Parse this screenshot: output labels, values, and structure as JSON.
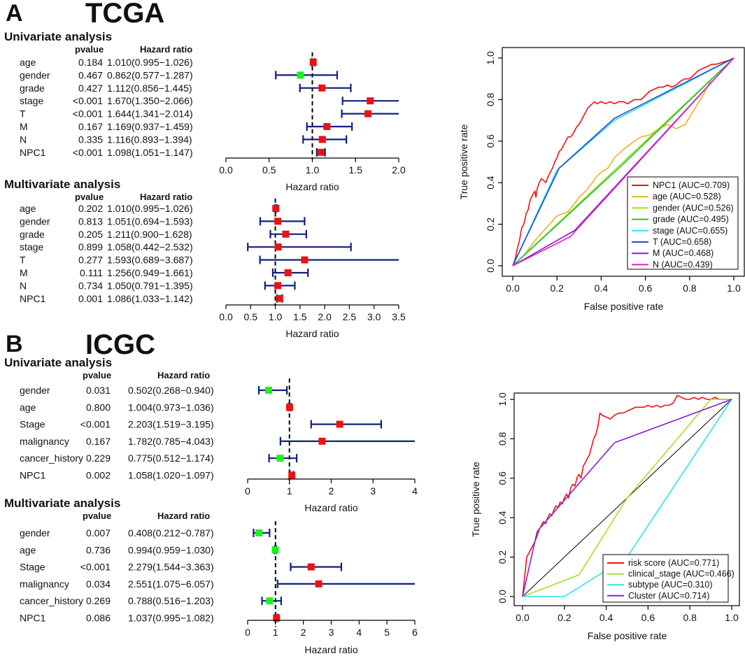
{
  "panels": [
    {
      "letter": "A",
      "cohort": "TCGA"
    },
    {
      "letter": "B",
      "cohort": "ICGC"
    }
  ],
  "forest_columns": {
    "pvalue": "pvalue",
    "hr": "Hazard ratio"
  },
  "colors": {
    "risk": "#ee1111",
    "protective": "#22ee22",
    "ci": "#10207a",
    "dash": "#000000"
  },
  "chart_data": [
    {
      "type": "forest",
      "id": "tcga_uni",
      "title": "Univariate analysis",
      "xlabel": "Hazard ratio",
      "xlim": [
        0,
        2.0
      ],
      "ticks": [
        0.0,
        0.5,
        1.0,
        1.5,
        2.0
      ],
      "tick_labels": [
        "0.0",
        "0.5",
        "1.0",
        "1.5",
        "2.0"
      ],
      "rows": [
        {
          "name": "age",
          "p": "0.184",
          "hr_text": "1.010(0.995−1.026)",
          "hr": 1.01,
          "lo": 0.995,
          "hi": 1.026
        },
        {
          "name": "gender",
          "p": "0.467",
          "hr_text": "0.862(0.577−1.287)",
          "hr": 0.862,
          "lo": 0.577,
          "hi": 1.287
        },
        {
          "name": "grade",
          "p": "0.427",
          "hr_text": "1.112(0.856−1.445)",
          "hr": 1.112,
          "lo": 0.856,
          "hi": 1.445
        },
        {
          "name": "stage",
          "p": "<0.001",
          "hr_text": "1.670(1.350−2.066)",
          "hr": 1.67,
          "lo": 1.35,
          "hi": 2.066
        },
        {
          "name": "T",
          "p": "<0.001",
          "hr_text": "1.644(1.341−2.014)",
          "hr": 1.644,
          "lo": 1.341,
          "hi": 2.014
        },
        {
          "name": "M",
          "p": "0.167",
          "hr_text": "1.169(0.937−1.459)",
          "hr": 1.169,
          "lo": 0.937,
          "hi": 1.459
        },
        {
          "name": "N",
          "p": "0.335",
          "hr_text": "1.116(0.893−1.394)",
          "hr": 1.116,
          "lo": 0.893,
          "hi": 1.394
        },
        {
          "name": "NPC1",
          "p": "<0.001",
          "hr_text": "1.098(1.051−1.147)",
          "hr": 1.098,
          "lo": 1.051,
          "hi": 1.147
        }
      ]
    },
    {
      "type": "forest",
      "id": "tcga_multi",
      "title": "Multivariate analysis",
      "xlabel": "Hazard ratio",
      "xlim": [
        0,
        3.5
      ],
      "ticks": [
        0.0,
        0.5,
        1.0,
        1.5,
        2.0,
        2.5,
        3.0,
        3.5
      ],
      "tick_labels": [
        "0.0",
        "0.5",
        "1.0",
        "1.5",
        "2.0",
        "2.5",
        "3.0",
        "3.5"
      ],
      "rows": [
        {
          "name": "age",
          "p": "0.202",
          "hr_text": "1.010(0.995−1.026)",
          "hr": 1.01,
          "lo": 0.995,
          "hi": 1.026
        },
        {
          "name": "gender",
          "p": "0.813",
          "hr_text": "1.051(0.694−1.593)",
          "hr": 1.051,
          "lo": 0.694,
          "hi": 1.593
        },
        {
          "name": "grade",
          "p": "0.205",
          "hr_text": "1.211(0.900−1.628)",
          "hr": 1.211,
          "lo": 0.9,
          "hi": 1.628
        },
        {
          "name": "stage",
          "p": "0.899",
          "hr_text": "1.058(0.442−2.532)",
          "hr": 1.058,
          "lo": 0.442,
          "hi": 2.532
        },
        {
          "name": "T",
          "p": "0.277",
          "hr_text": "1.593(0.689−3.687)",
          "hr": 1.593,
          "lo": 0.689,
          "hi": 3.687
        },
        {
          "name": "M",
          "p": "0.111",
          "hr_text": "1.256(0.949−1.661)",
          "hr": 1.256,
          "lo": 0.949,
          "hi": 1.661
        },
        {
          "name": "N",
          "p": "0.734",
          "hr_text": "1.050(0.791−1.395)",
          "hr": 1.05,
          "lo": 0.791,
          "hi": 1.395
        },
        {
          "name": "NPC1",
          "p": "0.001",
          "hr_text": "1.086(1.033−1.142)",
          "hr": 1.086,
          "lo": 1.033,
          "hi": 1.142
        }
      ]
    },
    {
      "type": "forest",
      "id": "icgc_uni",
      "title": "Univariate analysis",
      "xlabel": "Hazard ratio",
      "xlim": [
        0,
        4
      ],
      "ticks": [
        0,
        1,
        2,
        3,
        4
      ],
      "tick_labels": [
        "0",
        "1",
        "2",
        "3",
        "4"
      ],
      "rows": [
        {
          "name": "gender",
          "p": "0.031",
          "hr_text": "0.502(0.268−0.940)",
          "hr": 0.502,
          "lo": 0.268,
          "hi": 0.94
        },
        {
          "name": "age",
          "p": "0.800",
          "hr_text": "1.004(0.973−1.036)",
          "hr": 1.004,
          "lo": 0.973,
          "hi": 1.036
        },
        {
          "name": "Stage",
          "p": "<0.001",
          "hr_text": "2.203(1.519−3.195)",
          "hr": 2.203,
          "lo": 1.519,
          "hi": 3.195
        },
        {
          "name": "malignancy",
          "p": "0.167",
          "hr_text": "1.782(0.785−4.043)",
          "hr": 1.782,
          "lo": 0.785,
          "hi": 4.043
        },
        {
          "name": "cancer_history",
          "p": "0.229",
          "hr_text": "0.775(0.512−1.174)",
          "hr": 0.775,
          "lo": 0.512,
          "hi": 1.174
        },
        {
          "name": "NPC1",
          "p": "0.002",
          "hr_text": "1.058(1.020−1.097)",
          "hr": 1.058,
          "lo": 1.02,
          "hi": 1.097
        }
      ]
    },
    {
      "type": "forest",
      "id": "icgc_multi",
      "title": "Multivariate analysis",
      "xlabel": "Hazard ratio",
      "xlim": [
        0,
        6
      ],
      "ticks": [
        0,
        1,
        2,
        3,
        4,
        5,
        6
      ],
      "tick_labels": [
        "0",
        "1",
        "2",
        "3",
        "4",
        "5",
        "6"
      ],
      "rows": [
        {
          "name": "gender",
          "p": "0.007",
          "hr_text": "0.408(0.212−0.787)",
          "hr": 0.408,
          "lo": 0.212,
          "hi": 0.787
        },
        {
          "name": "age",
          "p": "0.736",
          "hr_text": "0.994(0.959−1.030)",
          "hr": 0.994,
          "lo": 0.959,
          "hi": 1.03
        },
        {
          "name": "Stage",
          "p": "<0.001",
          "hr_text": "2.279(1.544−3.363)",
          "hr": 2.279,
          "lo": 1.544,
          "hi": 3.363
        },
        {
          "name": "malignancy",
          "p": "0.034",
          "hr_text": "2.551(1.075−6.057)",
          "hr": 2.551,
          "lo": 1.075,
          "hi": 6.057
        },
        {
          "name": "cancer_history",
          "p": "0.269",
          "hr_text": "0.788(0.516−1.203)",
          "hr": 0.788,
          "lo": 0.516,
          "hi": 1.203
        },
        {
          "name": "NPC1",
          "p": "0.086",
          "hr_text": "1.037(0.995−1.082)",
          "hr": 1.037,
          "lo": 0.995,
          "hi": 1.082
        }
      ]
    },
    {
      "type": "line",
      "id": "tcga_roc",
      "xlabel": "False positive rate",
      "ylabel": "True positive rate",
      "xlim": [
        0,
        1
      ],
      "ylim": [
        0,
        1
      ],
      "ticks": [
        0.0,
        0.2,
        0.4,
        0.6,
        0.8,
        1.0
      ],
      "tick_labels": [
        "0.0",
        "0.2",
        "0.4",
        "0.6",
        "0.8",
        "1.0"
      ],
      "legend_position": "bottom-right",
      "series": [
        {
          "name": "NPC1 (AUC=0.709)",
          "color": "#ee1111",
          "x": [
            0,
            0.01,
            0.015,
            0.02,
            0.03,
            0.035,
            0.04,
            0.05,
            0.055,
            0.06,
            0.07,
            0.075,
            0.08,
            0.09,
            0.1,
            0.105,
            0.11,
            0.12,
            0.13,
            0.14,
            0.15,
            0.16,
            0.17,
            0.18,
            0.19,
            0.2,
            0.21,
            0.22,
            0.23,
            0.24,
            0.25,
            0.26,
            0.27,
            0.28,
            0.29,
            0.3,
            0.31,
            0.32,
            0.33,
            0.34,
            0.35,
            0.36,
            0.37,
            0.38,
            0.4,
            0.42,
            0.44,
            0.46,
            0.48,
            0.5,
            0.52,
            0.55,
            0.58,
            0.6,
            0.62,
            0.64,
            0.66,
            0.68,
            0.7,
            0.72,
            0.74,
            0.76,
            0.78,
            0.8,
            0.82,
            0.84,
            0.86,
            0.88,
            0.9,
            0.92,
            0.95,
            0.98,
            1.0
          ],
          "y": [
            0,
            0.03,
            0.05,
            0.08,
            0.12,
            0.15,
            0.18,
            0.2,
            0.22,
            0.25,
            0.27,
            0.3,
            0.32,
            0.34,
            0.36,
            0.33,
            0.37,
            0.4,
            0.42,
            0.41,
            0.4,
            0.43,
            0.45,
            0.47,
            0.5,
            0.52,
            0.55,
            0.56,
            0.58,
            0.6,
            0.62,
            0.62,
            0.63,
            0.65,
            0.67,
            0.68,
            0.7,
            0.72,
            0.74,
            0.76,
            0.77,
            0.78,
            0.79,
            0.78,
            0.79,
            0.78,
            0.79,
            0.78,
            0.79,
            0.79,
            0.78,
            0.8,
            0.8,
            0.82,
            0.84,
            0.85,
            0.86,
            0.86,
            0.87,
            0.86,
            0.87,
            0.89,
            0.9,
            0.9,
            0.92,
            0.94,
            0.95,
            0.96,
            0.97,
            0.97,
            0.98,
            0.99,
            1.0
          ]
        },
        {
          "name": "age (AUC=0.528)",
          "color": "#f0b020",
          "x": [
            0,
            0.05,
            0.1,
            0.15,
            0.2,
            0.25,
            0.28,
            0.3,
            0.33,
            0.36,
            0.38,
            0.4,
            0.43,
            0.46,
            0.5,
            0.55,
            0.58,
            0.62,
            0.66,
            0.7,
            0.74,
            0.78,
            0.82,
            0.86,
            0.9,
            0.95,
            1.0
          ],
          "y": [
            0,
            0.05,
            0.12,
            0.18,
            0.24,
            0.26,
            0.3,
            0.33,
            0.36,
            0.4,
            0.43,
            0.45,
            0.47,
            0.52,
            0.56,
            0.6,
            0.62,
            0.63,
            0.66,
            0.68,
            0.66,
            0.68,
            0.75,
            0.82,
            0.9,
            0.95,
            1.0
          ]
        },
        {
          "name": "gender (AUC=0.526)",
          "color": "#a0e020",
          "x": [
            0,
            1.0
          ],
          "y": [
            0,
            1.0
          ]
        },
        {
          "name": "grade (AUC=0.495)",
          "color": "#22c040",
          "x": [
            0,
            0.5,
            1.0
          ],
          "y": [
            0,
            0.49,
            1.0
          ]
        },
        {
          "name": "stage (AUC=0.655)",
          "color": "#30d8f0",
          "x": [
            0,
            0.2,
            0.46,
            1.0
          ],
          "y": [
            0,
            0.46,
            0.7,
            1.0
          ]
        },
        {
          "name": "T (AUC=0.658)",
          "color": "#1f4fd0",
          "x": [
            0,
            0.21,
            0.46,
            1.0
          ],
          "y": [
            0,
            0.47,
            0.71,
            1.0
          ]
        },
        {
          "name": "M (AUC=0.468)",
          "color": "#8a1fd0",
          "x": [
            0,
            0.28,
            1.0
          ],
          "y": [
            0,
            0.17,
            1.0
          ]
        },
        {
          "name": "N (AUC=0.439)",
          "color": "#e020c0",
          "x": [
            0,
            0.26,
            1.0
          ],
          "y": [
            0,
            0.14,
            1.0
          ]
        }
      ]
    },
    {
      "type": "line",
      "id": "icgc_roc",
      "xlabel": "False positive rate",
      "ylabel": "True positive rate",
      "xlim": [
        0,
        1
      ],
      "ylim": [
        0,
        1
      ],
      "ticks": [
        0.0,
        0.2,
        0.4,
        0.6,
        0.8,
        1.0
      ],
      "tick_labels": [
        "0.0",
        "0.2",
        "0.4",
        "0.6",
        "0.8",
        "1.0"
      ],
      "legend_position": "bottom-right",
      "series": [
        {
          "name": "risk score (AUC=0.771)",
          "color": "#ee1111",
          "x": [
            0,
            0.01,
            0.015,
            0.02,
            0.03,
            0.04,
            0.05,
            0.06,
            0.07,
            0.08,
            0.09,
            0.1,
            0.11,
            0.12,
            0.13,
            0.14,
            0.15,
            0.16,
            0.17,
            0.18,
            0.19,
            0.2,
            0.21,
            0.22,
            0.23,
            0.24,
            0.25,
            0.26,
            0.27,
            0.28,
            0.29,
            0.3,
            0.31,
            0.32,
            0.33,
            0.34,
            0.35,
            0.36,
            0.37,
            0.38,
            0.4,
            0.42,
            0.44,
            0.46,
            0.48,
            0.5,
            0.52,
            0.54,
            0.56,
            0.58,
            0.6,
            0.62,
            0.64,
            0.66,
            0.68,
            0.7,
            0.72,
            0.74,
            0.76,
            0.78,
            0.8,
            0.82,
            0.84,
            0.86,
            0.88,
            0.9,
            0.92,
            0.94,
            0.96,
            0.98,
            1.0
          ],
          "y": [
            0,
            0.1,
            0.15,
            0.2,
            0.22,
            0.24,
            0.26,
            0.28,
            0.31,
            0.34,
            0.36,
            0.38,
            0.37,
            0.4,
            0.42,
            0.41,
            0.44,
            0.46,
            0.45,
            0.48,
            0.47,
            0.5,
            0.52,
            0.5,
            0.55,
            0.57,
            0.56,
            0.6,
            0.62,
            0.6,
            0.66,
            0.68,
            0.7,
            0.72,
            0.76,
            0.8,
            0.82,
            0.86,
            0.93,
            0.92,
            0.91,
            0.9,
            0.92,
            0.93,
            0.93,
            0.94,
            0.95,
            0.96,
            0.96,
            0.96,
            0.97,
            0.96,
            0.97,
            0.96,
            0.97,
            0.97,
            0.98,
            1.02,
            1.01,
            1.0,
            1.0,
            1.01,
            1.0,
            1.01,
            1.0,
            1.0,
            1.01,
            1.0,
            1.0,
            1.0,
            1.0
          ]
        },
        {
          "name": "clinical_stage (AUC=0.466)",
          "color": "#a8e020",
          "x": [
            0,
            0.27,
            0.5,
            0.9,
            1.0
          ],
          "y": [
            0,
            0.11,
            0.5,
            1.0,
            1.0
          ]
        },
        {
          "name": "subtype (AUC=0.310)",
          "color": "#30e0f0",
          "x": [
            0,
            0.2,
            0.5,
            1.0
          ],
          "y": [
            0,
            0.0,
            0.2,
            1.0
          ]
        },
        {
          "name": "Cluster (AUC=0.714)",
          "color": "#8a1fd0",
          "x": [
            0,
            0.07,
            0.44,
            1.0
          ],
          "y": [
            0,
            0.33,
            0.78,
            1.0
          ]
        }
      ]
    }
  ]
}
